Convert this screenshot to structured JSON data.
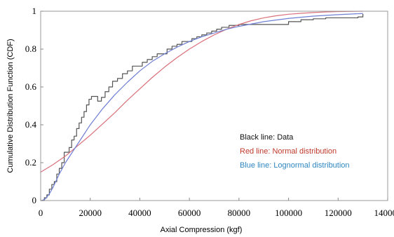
{
  "chart_data": {
    "type": "line",
    "title": "",
    "xlabel": "Axial Compression (kgf)",
    "ylabel": "Cumulative Distribution Function (CDF)",
    "xlim": [
      0,
      140000
    ],
    "ylim": [
      0,
      1
    ],
    "x_ticks": [
      0,
      20000,
      40000,
      60000,
      80000,
      100000,
      120000,
      140000
    ],
    "x_tick_labels": [
      "0",
      "20000",
      "40000",
      "60000",
      "80000",
      "100000",
      "120000",
      "140000"
    ],
    "y_ticks": [
      0,
      0.2,
      0.4,
      0.6,
      0.8,
      1
    ],
    "y_tick_labels": [
      "0",
      "0.2",
      "0.4",
      "0.6",
      "0.8",
      "1"
    ],
    "grid": false,
    "legend_position": "inside-right",
    "legend": [
      {
        "text": "Black line: Data",
        "color": "#111111"
      },
      {
        "text": "Red line: Normal distribution",
        "color": "#c0392b"
      },
      {
        "text": "Blue line: Lognormal distribution",
        "color": "#2e86c1"
      }
    ],
    "series": [
      {
        "id": "data",
        "color": "#555555",
        "step": true,
        "x": [
          0,
          1500,
          2500,
          3500,
          4500,
          5500,
          6500,
          7500,
          8500,
          9500,
          10500,
          11500,
          12500,
          13500,
          14500,
          15500,
          16500,
          17500,
          18500,
          19500,
          20500,
          21500,
          23000,
          24500,
          26000,
          27500,
          29000,
          31000,
          33000,
          35000,
          37000,
          39000,
          41000,
          43000,
          45000,
          47000,
          49000,
          51000,
          53000,
          55000,
          57000,
          59000,
          61000,
          63000,
          65000,
          67000,
          69000,
          71000,
          73000,
          76000,
          80000,
          85000,
          90000,
          95000,
          100000,
          105000,
          110000,
          115000,
          120000,
          125000,
          128000,
          130000
        ],
        "y": [
          0,
          0.015,
          0.03,
          0.06,
          0.085,
          0.1,
          0.14,
          0.17,
          0.2,
          0.255,
          0.255,
          0.28,
          0.32,
          0.34,
          0.38,
          0.41,
          0.44,
          0.47,
          0.505,
          0.535,
          0.55,
          0.55,
          0.525,
          0.545,
          0.575,
          0.6,
          0.63,
          0.645,
          0.67,
          0.685,
          0.71,
          0.71,
          0.73,
          0.745,
          0.76,
          0.775,
          0.775,
          0.8,
          0.815,
          0.825,
          0.84,
          0.84,
          0.855,
          0.865,
          0.875,
          0.885,
          0.895,
          0.905,
          0.915,
          0.925,
          0.93,
          0.93,
          0.93,
          0.93,
          0.945,
          0.955,
          0.96,
          0.965,
          0.965,
          0.965,
          0.97,
          0.985
        ]
      },
      {
        "id": "normal",
        "color": "#d9707a",
        "step": false,
        "x": [
          0,
          5000,
          10000,
          15000,
          20000,
          25000,
          30000,
          35000,
          40000,
          45000,
          50000,
          55000,
          60000,
          65000,
          70000,
          75000,
          80000,
          85000,
          90000,
          95000,
          100000,
          105000,
          110000,
          115000,
          120000,
          125000,
          130000
        ],
        "y": [
          0.15,
          0.19,
          0.235,
          0.29,
          0.345,
          0.405,
          0.465,
          0.53,
          0.59,
          0.65,
          0.705,
          0.755,
          0.8,
          0.84,
          0.875,
          0.905,
          0.93,
          0.95,
          0.965,
          0.976,
          0.984,
          0.989,
          0.993,
          0.996,
          0.998,
          0.999,
          1.0
        ]
      },
      {
        "id": "lognormal",
        "color": "#6f7fd4",
        "step": false,
        "x": [
          500,
          2000,
          3500,
          5000,
          7500,
          10000,
          12500,
          15000,
          17500,
          20000,
          25000,
          30000,
          35000,
          40000,
          45000,
          50000,
          55000,
          60000,
          65000,
          70000,
          75000,
          80000,
          90000,
          100000,
          110000,
          120000,
          130000
        ],
        "y": [
          0.0,
          0.01,
          0.035,
          0.07,
          0.14,
          0.2,
          0.25,
          0.3,
          0.35,
          0.4,
          0.485,
          0.56,
          0.625,
          0.685,
          0.735,
          0.775,
          0.81,
          0.84,
          0.865,
          0.885,
          0.905,
          0.92,
          0.945,
          0.962,
          0.974,
          0.982,
          0.988
        ]
      }
    ]
  }
}
